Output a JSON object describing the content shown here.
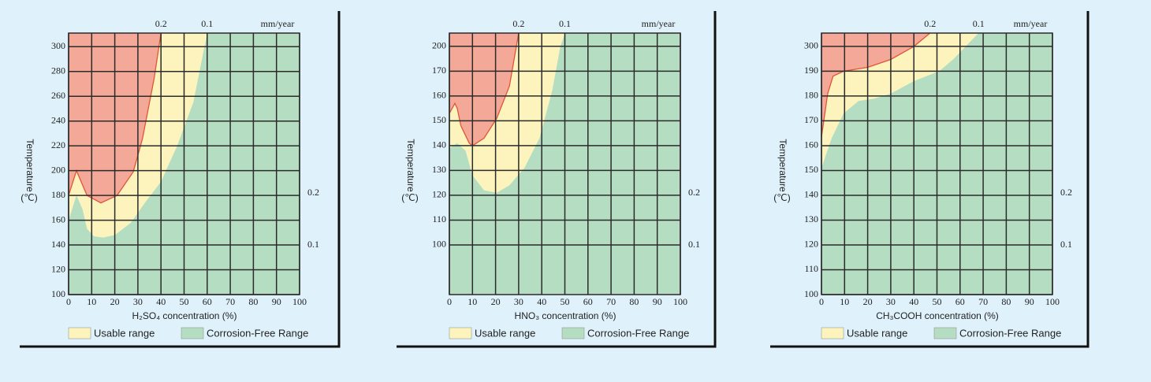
{
  "chart_data": [
    {
      "type": "area",
      "y_label": "Temperature",
      "y_unit": "(℃)",
      "x_label": "H₂SO₄ concentration (%)",
      "xlim": [
        0,
        100
      ],
      "xticks": [
        0,
        10,
        20,
        30,
        40,
        50,
        60,
        70,
        80,
        90,
        100
      ],
      "ylim": [
        100,
        311
      ],
      "yticks": [
        100,
        120,
        140,
        160,
        180,
        200,
        220,
        240,
        260,
        280,
        300
      ],
      "grid": true,
      "background_color": "#f4a898",
      "limit_line_color": "#e0553a",
      "annotations": {
        "top": [
          "0.2",
          "0.1",
          "mm/year"
        ],
        "right": [
          "0.2",
          "0.1"
        ]
      },
      "series": [
        {
          "name": "Usable range",
          "color": "#fcf4bc",
          "x": [
            0,
            3.4,
            8,
            14,
            21,
            28,
            32,
            37,
            40
          ],
          "values": [
            180,
            200,
            180,
            174,
            180,
            199,
            226,
            274,
            311
          ]
        },
        {
          "name": "Corrosion-Free Range",
          "color": "#b5ddc2",
          "x": [
            0,
            3.4,
            6,
            8,
            11,
            15,
            20,
            27,
            33,
            40,
            47,
            54,
            60
          ],
          "values": [
            160,
            180,
            169,
            153,
            147,
            146,
            148,
            158,
            174,
            191,
            220,
            255,
            311
          ]
        }
      ]
    },
    {
      "type": "area",
      "y_label": "Temperature",
      "y_unit": "(℃)",
      "x_label": "HNO₃ concentration (%)",
      "xlim": [
        0,
        100
      ],
      "xticks": [
        0,
        10,
        20,
        30,
        40,
        50,
        60,
        70,
        80,
        90,
        100
      ],
      "ylim": [
        80,
        216
      ],
      "yticks": [
        100,
        110,
        120,
        130,
        140,
        150,
        160,
        170,
        200
      ],
      "grid": true,
      "background_color": "#f4a898",
      "limit_line_color": "#e0553a",
      "annotations": {
        "top": [
          "0.2",
          "0.1",
          "mm/year"
        ],
        "right": [
          "0.2",
          "0.1"
        ]
      },
      "series": [
        {
          "name": "Usable range",
          "color": "#fcf4bc",
          "x": [
            0,
            2.4,
            3.4,
            5,
            8.6,
            10,
            15,
            20.5,
            26,
            29,
            30
          ],
          "values": [
            153,
            157,
            155,
            148,
            141,
            140,
            143,
            151,
            164,
            200,
            216
          ]
        },
        {
          "name": "Corrosion-Free Range",
          "color": "#b5ddc2",
          "x": [
            0,
            3.4,
            7,
            10,
            15,
            20.5,
            26,
            32.5,
            39,
            44.5,
            48,
            50
          ],
          "values": [
            139,
            141,
            138,
            128,
            122,
            121,
            124,
            131,
            143,
            162,
            199,
            216
          ]
        }
      ]
    },
    {
      "type": "area",
      "y_label": "Temperature",
      "y_unit": "(℃)",
      "x_label": "CH₃COOH concentration (%)",
      "xlim": [
        0,
        100
      ],
      "xticks": [
        0,
        10,
        20,
        30,
        40,
        50,
        60,
        70,
        80,
        90,
        100
      ],
      "ylim": [
        100,
        359
      ],
      "yticks": [
        100,
        110,
        120,
        130,
        140,
        150,
        160,
        170,
        180,
        190,
        300
      ],
      "grid": true,
      "background_color": "#f4a898",
      "limit_line_color": "#e0553a",
      "annotations": {
        "top": [
          "0.2",
          "0.1",
          "mm/year"
        ],
        "right": [
          "0.2",
          "0.1"
        ]
      },
      "series": [
        {
          "name": "Usable range",
          "color": "#fcf4bc",
          "x": [
            0,
            2.7,
            5,
            9.6,
            20,
            30,
            40,
            47
          ],
          "values": [
            163.5,
            181,
            188,
            190,
            207,
            242,
            300,
            359
          ]
        },
        {
          "name": "Corrosion-Free Range",
          "color": "#b5ddc2",
          "x": [
            0,
            4.4,
            9.6,
            16,
            23,
            30,
            40,
            51,
            57,
            68
          ],
          "values": [
            151,
            163,
            173,
            178,
            179,
            181,
            186,
            190,
            242,
            359
          ]
        }
      ]
    }
  ]
}
